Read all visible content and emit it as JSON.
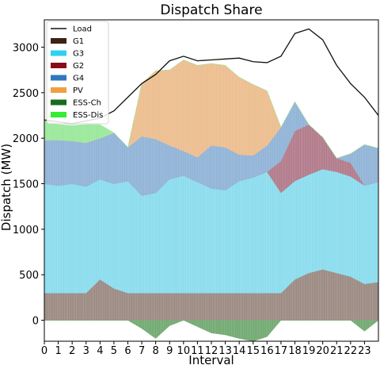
{
  "chart_data": {
    "type": "area",
    "title": "Dispatch Share",
    "xlabel": "Interval",
    "ylabel": "Dispatch (MW)",
    "xlim": [
      0,
      24
    ],
    "ylim": [
      -230,
      3300
    ],
    "x_ticks": [
      "0",
      "1",
      "2",
      "3",
      "4",
      "5",
      "6",
      "7",
      "8",
      "9",
      "10",
      "11",
      "12",
      "13",
      "14",
      "15",
      "16",
      "17",
      "18",
      "19",
      "20",
      "21",
      "22",
      "23"
    ],
    "y_ticks": [
      0,
      500,
      1000,
      1500,
      2000,
      2500,
      3000
    ],
    "grid": false,
    "legend_position": "top-left",
    "legend": [
      {
        "name": "Load",
        "kind": "line",
        "color": "#111111"
      },
      {
        "name": "G1",
        "kind": "patch",
        "color": "#3c2315"
      },
      {
        "name": "G3",
        "kind": "patch",
        "color": "#30d0f0"
      },
      {
        "name": "G2",
        "kind": "patch",
        "color": "#8b0a1a"
      },
      {
        "name": "G4",
        "kind": "patch",
        "color": "#2e78c0"
      },
      {
        "name": "PV",
        "kind": "patch",
        "color": "#f0a040"
      },
      {
        "name": "ESS-Ch",
        "kind": "patch",
        "color": "#1a6a1a"
      },
      {
        "name": "ESS-Dis",
        "kind": "patch",
        "color": "#33ee33"
      }
    ],
    "x": [
      0,
      1,
      2,
      3,
      4,
      5,
      6,
      7,
      8,
      9,
      10,
      11,
      12,
      13,
      14,
      15,
      16,
      17,
      18,
      19,
      20,
      21,
      22,
      23,
      24
    ],
    "series": [
      {
        "name": "G1",
        "color": "#9a8880",
        "values": [
          300,
          300,
          300,
          300,
          450,
          350,
          300,
          300,
          300,
          300,
          300,
          300,
          300,
          300,
          300,
          300,
          300,
          300,
          450,
          520,
          560,
          520,
          480,
          400,
          420
        ]
      },
      {
        "name": "G3",
        "color": "#88dcee",
        "values": [
          1200,
          1180,
          1200,
          1170,
          1100,
          1150,
          1230,
          1070,
          1100,
          1250,
          1290,
          1220,
          1150,
          1130,
          1230,
          1270,
          1330,
          1100,
          1080,
          1080,
          1100,
          1110,
          1100,
          1080,
          1100
        ]
      },
      {
        "name": "G2",
        "color": "#b07888",
        "values": [
          0,
          0,
          0,
          0,
          0,
          0,
          0,
          0,
          0,
          0,
          0,
          0,
          0,
          0,
          0,
          0,
          0,
          350,
          550,
          550,
          350,
          150,
          150,
          0,
          0
        ]
      },
      {
        "name": "G4",
        "color": "#8eb2d6",
        "values": [
          480,
          500,
          470,
          480,
          450,
          560,
          370,
          650,
          590,
          370,
          270,
          270,
          470,
          470,
          290,
          240,
          290,
          370,
          320,
          0,
          0,
          0,
          100,
          450,
          370
        ]
      },
      {
        "name": "PV",
        "color": "#ecbc8c",
        "values": [
          0,
          0,
          0,
          0,
          0,
          0,
          0,
          580,
          750,
          830,
          1000,
          1010,
          900,
          900,
          850,
          780,
          600,
          0,
          0,
          0,
          0,
          0,
          0,
          0,
          0
        ]
      },
      {
        "name": "ESS-Dis",
        "color": "#98e898",
        "values": [
          220,
          170,
          170,
          200,
          150,
          0,
          0,
          0,
          0,
          0,
          0,
          0,
          0,
          0,
          0,
          0,
          0,
          0,
          0,
          0,
          0,
          0,
          0,
          0,
          0
        ]
      },
      {
        "name": "ESS-Ch",
        "color": "#6fa86f",
        "values": [
          0,
          0,
          0,
          0,
          0,
          0,
          0,
          -90,
          -200,
          -60,
          0,
          -70,
          -140,
          -160,
          -200,
          -230,
          -180,
          0,
          0,
          0,
          0,
          0,
          0,
          -120,
          0
        ]
      }
    ],
    "load": [
      2200,
      2180,
      2160,
      2190,
      2220,
      2300,
      2450,
      2600,
      2700,
      2850,
      2900,
      2850,
      2860,
      2870,
      2880,
      2840,
      2830,
      2900,
      3150,
      3200,
      3080,
      2800,
      2600,
      2450,
      2250
    ]
  }
}
